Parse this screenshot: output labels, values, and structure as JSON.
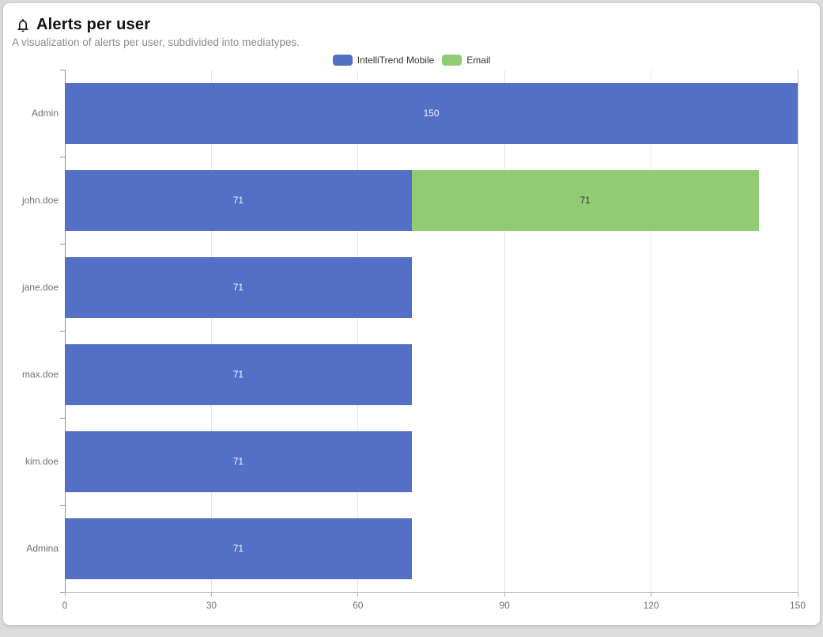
{
  "header": {
    "title": "Alerts per user",
    "subtitle": "A visualization of alerts per user, subdivided into mediatypes.",
    "icon": "bell-icon"
  },
  "legend": {
    "items": [
      {
        "label": "IntelliTrend Mobile",
        "color": "#5470c6"
      },
      {
        "label": "Email",
        "color": "#91cc75"
      }
    ]
  },
  "chart_data": {
    "type": "bar",
    "orientation": "horizontal",
    "stacked": true,
    "title": "Alerts per user",
    "subtitle": "A visualization of alerts per user, subdivided into mediatypes.",
    "categories": [
      "Admin",
      "john.doe",
      "jane.doe",
      "max.doe",
      "kim.doe",
      "Admina"
    ],
    "series": [
      {
        "name": "IntelliTrend Mobile",
        "color": "#5470c6",
        "label_color": "#f2f3fa",
        "values": [
          150,
          71,
          71,
          71,
          71,
          71
        ]
      },
      {
        "name": "Email",
        "color": "#91cc75",
        "label_color": "#33383d",
        "values": [
          0,
          71,
          0,
          0,
          0,
          0
        ]
      }
    ],
    "xlabel": "",
    "ylabel": "",
    "x_ticks": [
      0,
      30,
      60,
      90,
      120,
      150
    ],
    "xlim": [
      0,
      150
    ],
    "grid": true,
    "grid_color": "#e0e6f1",
    "axis_color": "#8f9499",
    "tick_label_color": "#6e7079",
    "legend_position": "top-center",
    "bar_totals": {
      "Admin": 150,
      "john.doe": 142,
      "jane.doe": 71,
      "max.doe": 71,
      "kim.doe": 71,
      "Admina": 71
    }
  }
}
